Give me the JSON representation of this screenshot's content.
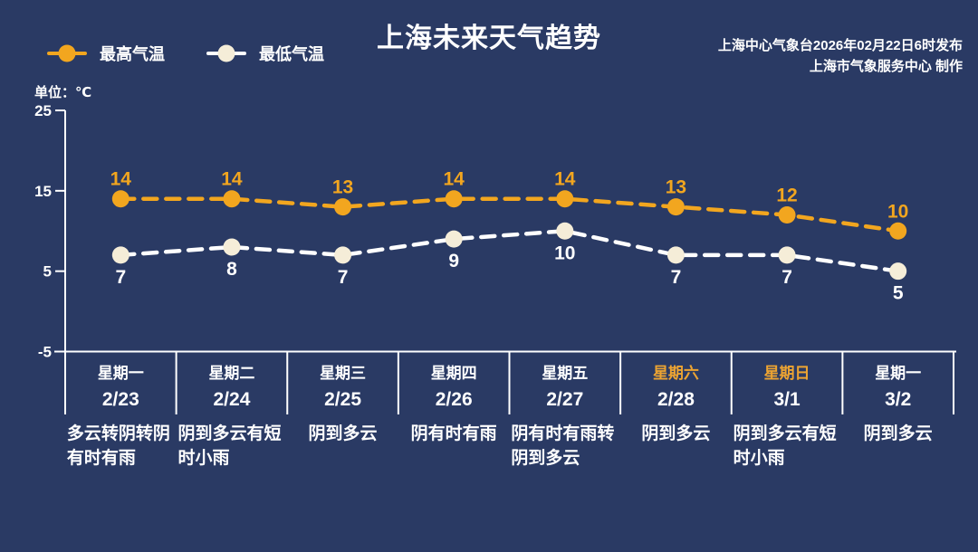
{
  "page": {
    "background_color": "#2a3a64"
  },
  "header": {
    "title": "上海未来天气趋势",
    "publisher_line1": "上海中心气象台2026年02月22日6时发布",
    "publisher_line2": "上海市气象服务中心 制作",
    "unit_label": "单位：℃"
  },
  "legend": [
    {
      "label": "最高气温",
      "line_color": "#f2a61f",
      "dot_color": "#f2a61f"
    },
    {
      "label": "最低气温",
      "line_color": "#ffffff",
      "dot_color": "#f5edd8"
    }
  ],
  "colors": {
    "background": "#2a3a64",
    "accent_orange": "#f2a61f",
    "cream_dot": "#f5edd8",
    "axis_white": "#ffffff",
    "weekend_orange": "#eda432"
  },
  "chart_data": {
    "type": "line",
    "title": "上海未来天气趋势",
    "ylabel": "单位：℃",
    "ylim": [
      -5,
      25
    ],
    "yticks": [
      25,
      15,
      5,
      -5
    ],
    "grid": false,
    "legend_position": "top-left",
    "line_style": "dashed",
    "categories": [
      "2/23",
      "2/24",
      "2/25",
      "2/26",
      "2/27",
      "2/28",
      "3/1",
      "3/2"
    ],
    "series": [
      {
        "name": "最高气温",
        "values": [
          14,
          14,
          13,
          14,
          14,
          13,
          12,
          10
        ],
        "line_color": "#f2a61f",
        "dot_color": "#f2a61f",
        "label_color": "#f2a61f",
        "label_position": "above"
      },
      {
        "name": "最低气温",
        "values": [
          7,
          8,
          7,
          9,
          10,
          7,
          7,
          5
        ],
        "line_color": "#ffffff",
        "dot_color": "#f5edd8",
        "label_color": "#ffffff",
        "label_position": "below"
      }
    ]
  },
  "days": [
    {
      "weekday": "星期一",
      "date": "2/23",
      "weather": "多云转阴转阴有时有雨",
      "weekend": false
    },
    {
      "weekday": "星期二",
      "date": "2/24",
      "weather": "阴到多云有短时小雨",
      "weekend": false
    },
    {
      "weekday": "星期三",
      "date": "2/25",
      "weather": "阴到多云",
      "weekend": false
    },
    {
      "weekday": "星期四",
      "date": "2/26",
      "weather": "阴有时有雨",
      "weekend": false
    },
    {
      "weekday": "星期五",
      "date": "2/27",
      "weather": "阴有时有雨转阴到多云",
      "weekend": false
    },
    {
      "weekday": "星期六",
      "date": "2/28",
      "weather": "阴到多云",
      "weekend": true
    },
    {
      "weekday": "星期日",
      "date": "3/1",
      "weather": "阴到多云有短时小雨",
      "weekend": true
    },
    {
      "weekday": "星期一",
      "date": "3/2",
      "weather": "阴到多云",
      "weekend": false
    }
  ]
}
